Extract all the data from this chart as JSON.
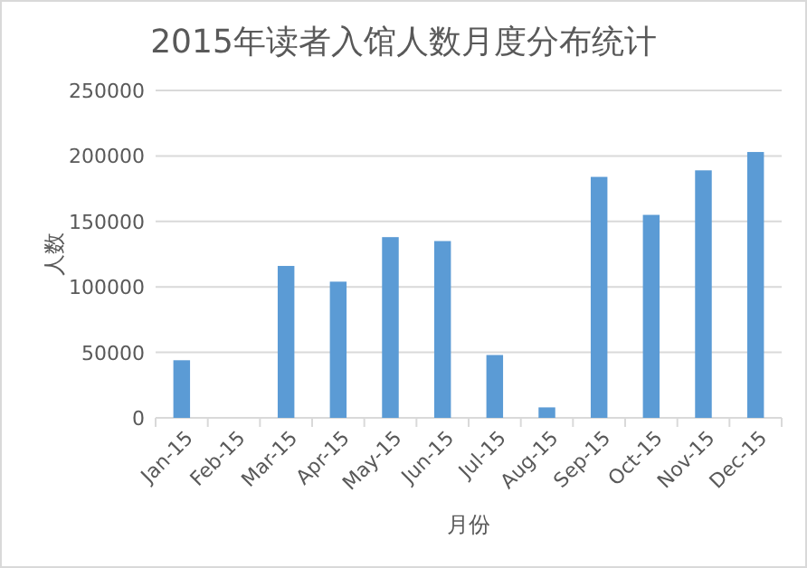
{
  "chart_data": {
    "type": "bar",
    "title": "2015年读者入馆人数月度分布统计",
    "xlabel": "月份",
    "ylabel": "人数",
    "categories": [
      "Jan-15",
      "Feb-15",
      "Mar-15",
      "Apr-15",
      "May-15",
      "Jun-15",
      "Jul-15",
      "Aug-15",
      "Sep-15",
      "Oct-15",
      "Nov-15",
      "Dec-15"
    ],
    "values": [
      44000,
      0,
      116000,
      104000,
      138000,
      135000,
      48000,
      8000,
      184000,
      155000,
      189000,
      203000
    ],
    "color": "#5b9bd5",
    "ylim": [
      0,
      250000
    ],
    "yticks": [
      0,
      50000,
      100000,
      150000,
      200000,
      250000
    ],
    "grid": "y"
  }
}
